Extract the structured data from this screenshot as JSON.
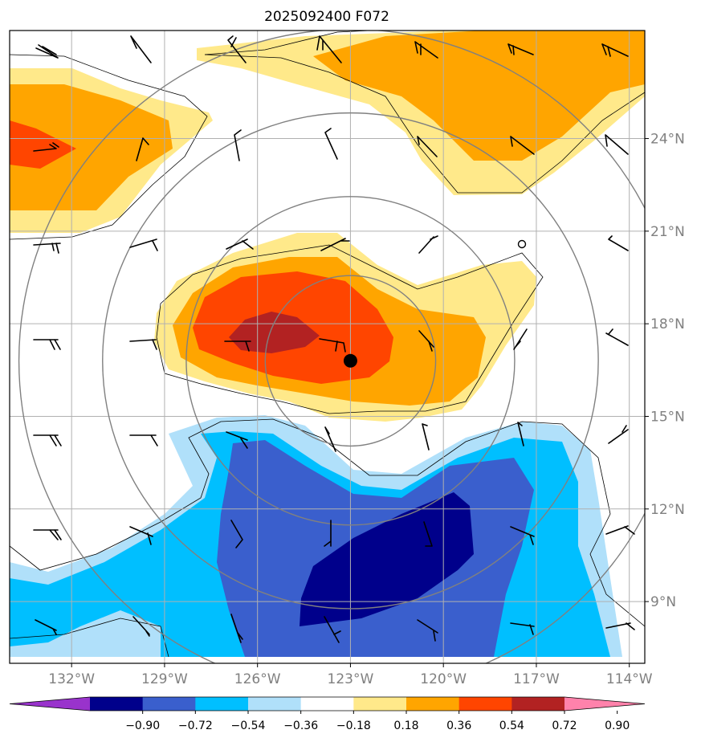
{
  "title": "2025092400 F072",
  "map": {
    "lon_range": [
      -134,
      -113.5
    ],
    "lat_range": [
      7,
      27.5
    ],
    "lon_ticks": [
      {
        "value": -132,
        "label": "132°W"
      },
      {
        "value": -129,
        "label": "129°W"
      },
      {
        "value": -126,
        "label": "126°W"
      },
      {
        "value": -123,
        "label": "123°W"
      },
      {
        "value": -120,
        "label": "120°W"
      },
      {
        "value": -117,
        "label": "117°W"
      },
      {
        "value": -114,
        "label": "114°W"
      }
    ],
    "lat_ticks": [
      {
        "value": 9,
        "label": "9°N"
      },
      {
        "value": 12,
        "label": "12°N"
      },
      {
        "value": 15,
        "label": "15°N"
      },
      {
        "value": 18,
        "label": "18°N"
      },
      {
        "value": 21,
        "label": "21°N"
      },
      {
        "value": 24,
        "label": "24°N"
      }
    ],
    "storm_center": {
      "lon": -123,
      "lat": 16.8
    },
    "range_rings_deg": [
      2.75,
      5.3,
      8,
      10.7
    ],
    "grid": true
  },
  "colorbar": {
    "levels": [
      "−0.90",
      "−0.72",
      "−0.54",
      "−0.36",
      "−0.18",
      "0.18",
      "0.36",
      "0.54",
      "0.72",
      "0.90"
    ],
    "colors": [
      "#9933cc",
      "#00008b",
      "#3a5fcd",
      "#00bfff",
      "#b0e0fa",
      "#ffffff",
      "#ffe98a",
      "#ffa500",
      "#ff4500",
      "#b22222",
      "#ff82ab"
    ],
    "extend": "both"
  },
  "colors": {
    "grid": "#b0b0b0",
    "rings": "#808080",
    "barb": "#000000"
  }
}
